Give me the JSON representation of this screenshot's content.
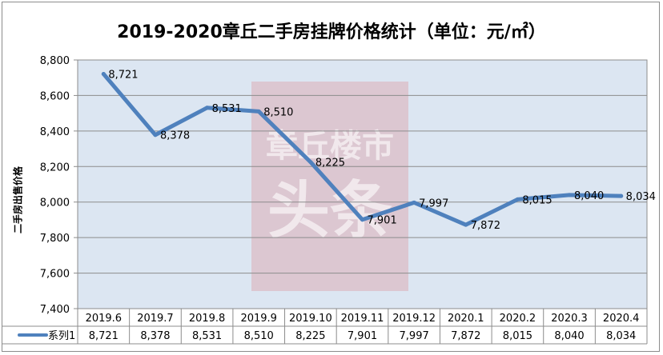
{
  "chart_data": {
    "type": "line",
    "title": "2019-2020章丘二手房挂牌价格统计（单位：元/㎡）",
    "ylabel": "二手房出售价格",
    "categories": [
      "2019.6",
      "2019.7",
      "2019.8",
      "2019.9",
      "2019.10",
      "2019.11",
      "2019.12",
      "2020.1",
      "2020.2",
      "2020.3",
      "2020.4"
    ],
    "series": [
      {
        "name": "系列1",
        "values": [
          8721,
          8378,
          8531,
          8510,
          8225,
          7901,
          7997,
          7872,
          8015,
          8040,
          8034
        ],
        "color": "#4f81bd"
      }
    ],
    "value_labels": [
      "8,721",
      "8,378",
      "8,531",
      "8,510",
      "8,225",
      "7,901",
      "7,997",
      "7,872",
      "8,015",
      "8,040",
      "8,034"
    ],
    "ylim": [
      7400,
      8800
    ],
    "yticks": [
      7400,
      7600,
      7800,
      8000,
      8200,
      8400,
      8600,
      8800
    ],
    "ytick_labels": [
      "7,400",
      "7,600",
      "7,800",
      "8,000",
      "8,200",
      "8,400",
      "8,600",
      "8,800"
    ],
    "grid": true,
    "plot_background": "#dce6f2",
    "data_table": true
  },
  "watermark": {
    "text_top": "章丘楼市",
    "text_bottom": "头条"
  }
}
